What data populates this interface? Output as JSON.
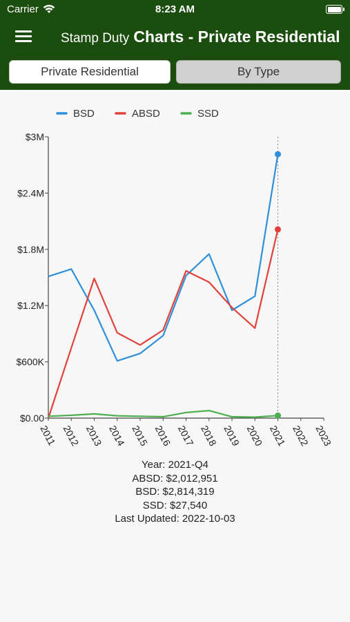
{
  "status_bar": {
    "carrier": "Carrier",
    "time": "8:23 AM"
  },
  "header": {
    "title_part1": "Stamp Duty",
    "title_part2": "Charts - Private Residential",
    "background_color": "#1b4d0f"
  },
  "segments": [
    {
      "label": "Private Residential",
      "selected": true
    },
    {
      "label": "By Type",
      "selected": false
    }
  ],
  "chart_data": {
    "type": "line",
    "x": [
      2011,
      2012,
      2013,
      2014,
      2015,
      2016,
      2017,
      2018,
      2019,
      2020,
      2021
    ],
    "x_ticks": [
      "2011",
      "2012",
      "2013",
      "2014",
      "2015",
      "2016",
      "2017",
      "2018",
      "2019",
      "2020",
      "2021",
      "2022",
      "2023"
    ],
    "xlim": [
      2011,
      2023
    ],
    "ylim": [
      0,
      3000000
    ],
    "y_ticks": [
      {
        "value": 0,
        "label": "$0.00"
      },
      {
        "value": 600000,
        "label": "$600K"
      },
      {
        "value": 1200000,
        "label": "$1.2M"
      },
      {
        "value": 1800000,
        "label": "$1.8M"
      },
      {
        "value": 2400000,
        "label": "$2.4M"
      },
      {
        "value": 3000000,
        "label": "$3M"
      }
    ],
    "legend_position": "top",
    "grid": false,
    "highlight_x": 2021,
    "series": [
      {
        "name": "BSD",
        "color": "#2e8fdb",
        "values": [
          1510000,
          1590000,
          1150000,
          610000,
          690000,
          880000,
          1520000,
          1750000,
          1150000,
          1300000,
          2814319
        ]
      },
      {
        "name": "ABSD",
        "color": "#e2403a",
        "values": [
          0,
          750000,
          1490000,
          910000,
          780000,
          940000,
          1570000,
          1450000,
          1180000,
          960000,
          2012951
        ]
      },
      {
        "name": "SSD",
        "color": "#4caf50",
        "values": [
          20000,
          30000,
          45000,
          25000,
          20000,
          15000,
          60000,
          80000,
          15000,
          10000,
          27540
        ]
      }
    ]
  },
  "info": {
    "year": "Year: 2021-Q4",
    "absd": "ABSD: $2,012,951",
    "bsd": "BSD: $2,814,319",
    "ssd": "SSD: $27,540",
    "updated": "Last Updated: 2022-10-03"
  }
}
